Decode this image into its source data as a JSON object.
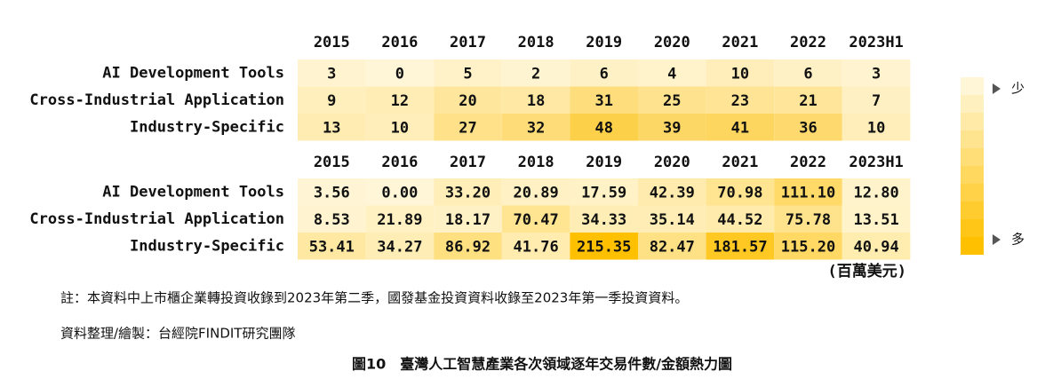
{
  "chart_data": [
    {
      "type": "heatmap",
      "x": [
        "2015",
        "2016",
        "2017",
        "2018",
        "2019",
        "2020",
        "2021",
        "2022",
        "2023H1"
      ],
      "y": [
        "AI Development Tools",
        "Cross-Industrial Application",
        "Industry-Specific"
      ],
      "values": [
        [
          3,
          0,
          5,
          2,
          6,
          4,
          10,
          6,
          3
        ],
        [
          9,
          12,
          20,
          18,
          31,
          25,
          23,
          21,
          7
        ],
        [
          13,
          10,
          27,
          32,
          48,
          39,
          41,
          36,
          10
        ]
      ],
      "color_range": [
        "#fff6d8",
        "#fdd04a"
      ]
    },
    {
      "type": "heatmap",
      "x": [
        "2015",
        "2016",
        "2017",
        "2018",
        "2019",
        "2020",
        "2021",
        "2022",
        "2023H1"
      ],
      "y": [
        "AI Development Tools",
        "Cross-Industrial Application",
        "Industry-Specific"
      ],
      "values": [
        [
          3.56,
          0,
          33.2,
          20.89,
          17.59,
          42.39,
          70.98,
          111.1,
          12.8
        ],
        [
          8.53,
          21.89,
          18.17,
          70.47,
          34.33,
          35.14,
          44.52,
          75.78,
          13.51
        ],
        [
          53.41,
          34.27,
          86.92,
          41.76,
          215.35,
          82.47,
          181.57,
          115.2,
          40.94
        ]
      ],
      "value_labels": [
        [
          "3.56",
          "0.00",
          "33.20",
          "20.89",
          "17.59",
          "42.39",
          "70.98",
          "111.10",
          "12.80"
        ],
        [
          "8.53",
          "21.89",
          "18.17",
          "70.47",
          "34.33",
          "35.14",
          "44.52",
          "75.78",
          "13.51"
        ],
        [
          "53.41",
          "34.27",
          "86.92",
          "41.76",
          "215.35",
          "82.47",
          "181.57",
          "115.20",
          "40.94"
        ]
      ],
      "unit": "(百萬美元)",
      "color_range": [
        "#fff6d8",
        "#ffc000"
      ]
    }
  ],
  "legend": {
    "low": "少",
    "high": "多"
  },
  "note": "註：本資料中上市櫃企業轉投資收錄到2023年第二季，國發基金投資資料收錄至2023年第一季投資資料。",
  "source": "資料整理/繪製：台經院FINDIT研究團隊",
  "caption": "圖10　臺灣人工智慧產業各次領域逐年交易件數/金額熱力圖"
}
